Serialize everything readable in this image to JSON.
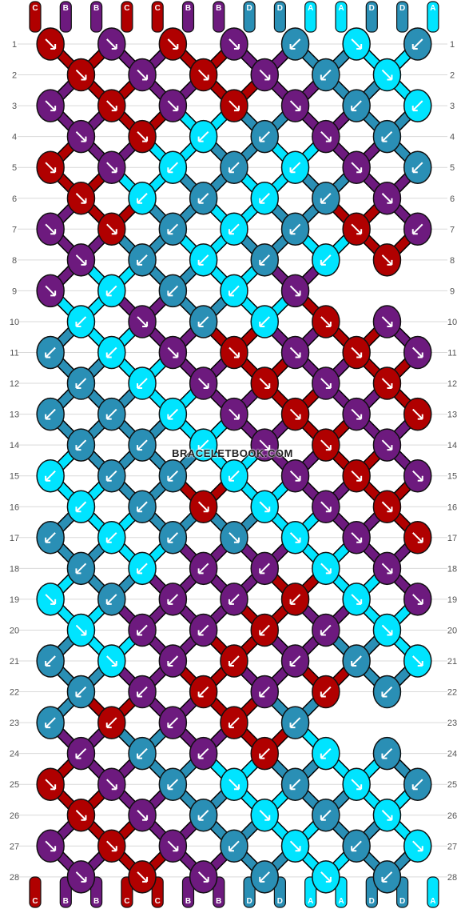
{
  "colors": {
    "A": "#00e4ff",
    "B": "#6d1a7e",
    "C": "#b00000",
    "D": "#2a8fb5"
  },
  "strands_top": [
    "C",
    "B",
    "B",
    "C",
    "C",
    "B",
    "B",
    "D",
    "D",
    "A",
    "A",
    "D",
    "D",
    "A"
  ],
  "strands_bottom": [
    "C",
    "B",
    "B",
    "C",
    "C",
    "B",
    "B",
    "D",
    "D",
    "A",
    "A",
    "D",
    "D",
    "A"
  ],
  "rows": [
    {
      "num": "1",
      "knots": [
        [
          "C",
          "r"
        ],
        [
          "B",
          "r"
        ],
        [
          "C",
          "r"
        ],
        [
          "B",
          "r"
        ],
        [
          "D",
          "l"
        ],
        [
          "A",
          "r"
        ],
        [
          "D",
          "l"
        ]
      ]
    },
    {
      "num": "2",
      "knots": [
        [
          "C",
          "r"
        ],
        [
          "B",
          "r"
        ],
        [
          "C",
          "r"
        ],
        [
          "B",
          "r"
        ],
        [
          "D",
          "l"
        ],
        [
          "A",
          "r"
        ]
      ]
    },
    {
      "num": "3",
      "knots": [
        [
          "B",
          "r"
        ],
        [
          "C",
          "r"
        ],
        [
          "B",
          "r"
        ],
        [
          "C",
          "r"
        ],
        [
          "B",
          "r"
        ],
        [
          "D",
          "l"
        ],
        [
          "A",
          "l"
        ]
      ]
    },
    {
      "num": "4",
      "knots": [
        [
          "B",
          "r"
        ],
        [
          "C",
          "r"
        ],
        [
          "A",
          "l"
        ],
        [
          "D",
          "l"
        ],
        [
          "B",
          "r"
        ],
        [
          "D",
          "l"
        ]
      ]
    },
    {
      "num": "5",
      "knots": [
        [
          "C",
          "r"
        ],
        [
          "B",
          "r"
        ],
        [
          "A",
          "l"
        ],
        [
          "D",
          "l"
        ],
        [
          "A",
          "l"
        ],
        [
          "B",
          "r"
        ],
        [
          "D",
          "l"
        ]
      ]
    },
    {
      "num": "6",
      "knots": [
        [
          "C",
          "r"
        ],
        [
          "A",
          "l"
        ],
        [
          "D",
          "l"
        ],
        [
          "A",
          "l"
        ],
        [
          "D",
          "l"
        ],
        [
          "B",
          "r"
        ]
      ]
    },
    {
      "num": "7",
      "knots": [
        [
          "B",
          "r"
        ],
        [
          "C",
          "r"
        ],
        [
          "D",
          "l"
        ],
        [
          "A",
          "l"
        ],
        [
          "D",
          "l"
        ],
        [
          "C",
          "r"
        ],
        [
          "B",
          "l"
        ]
      ]
    },
    {
      "num": "8",
      "knots": [
        [
          "B",
          "r"
        ],
        [
          "D",
          "l"
        ],
        [
          "A",
          "l"
        ],
        [
          "D",
          "l"
        ],
        [
          "A",
          "l"
        ],
        [
          "C",
          "r"
        ]
      ]
    },
    {
      "num": "9",
      "knots": [
        [
          "B",
          "r"
        ],
        [
          "A",
          "l"
        ],
        [
          "D",
          "l"
        ],
        [
          "A",
          "l"
        ],
        [
          "B",
          "r"
        ]
      ]
    },
    {
      "num": "10",
      "knots": [
        [
          "A",
          "l"
        ],
        [
          "B",
          "r"
        ],
        [
          "D",
          "l"
        ],
        [
          "A",
          "l"
        ],
        [
          "C",
          "r"
        ],
        [
          "B",
          "r"
        ]
      ]
    },
    {
      "num": "11",
      "knots": [
        [
          "D",
          "l"
        ],
        [
          "A",
          "l"
        ],
        [
          "B",
          "r"
        ],
        [
          "C",
          "r"
        ],
        [
          "B",
          "r"
        ],
        [
          "C",
          "r"
        ],
        [
          "B",
          "r"
        ]
      ]
    },
    {
      "num": "12",
      "knots": [
        [
          "D",
          "l"
        ],
        [
          "A",
          "l"
        ],
        [
          "B",
          "r"
        ],
        [
          "C",
          "r"
        ],
        [
          "B",
          "r"
        ],
        [
          "C",
          "r"
        ]
      ]
    },
    {
      "num": "13",
      "knots": [
        [
          "D",
          "l"
        ],
        [
          "D",
          "l"
        ],
        [
          "A",
          "l"
        ],
        [
          "B",
          "r"
        ],
        [
          "C",
          "r"
        ],
        [
          "B",
          "r"
        ],
        [
          "C",
          "r"
        ]
      ]
    },
    {
      "num": "14",
      "knots": [
        [
          "D",
          "l"
        ],
        [
          "D",
          "l"
        ],
        [
          "A",
          "l"
        ],
        [
          "B",
          "r"
        ],
        [
          "C",
          "r"
        ],
        [
          "B",
          "r"
        ]
      ]
    },
    {
      "num": "15",
      "knots": [
        [
          "A",
          "l"
        ],
        [
          "D",
          "l"
        ],
        [
          "D",
          "l"
        ],
        [
          "A",
          "l"
        ],
        [
          "B",
          "r"
        ],
        [
          "C",
          "r"
        ],
        [
          "B",
          "r"
        ]
      ]
    },
    {
      "num": "16",
      "knots": [
        [
          "A",
          "l"
        ],
        [
          "D",
          "l"
        ],
        [
          "C",
          "r"
        ],
        [
          "A",
          "r"
        ],
        [
          "B",
          "r"
        ],
        [
          "C",
          "r"
        ]
      ]
    },
    {
      "num": "17",
      "knots": [
        [
          "D",
          "l"
        ],
        [
          "A",
          "l"
        ],
        [
          "D",
          "l"
        ],
        [
          "D",
          "r"
        ],
        [
          "A",
          "r"
        ],
        [
          "B",
          "r"
        ],
        [
          "C",
          "r"
        ]
      ]
    },
    {
      "num": "18",
      "knots": [
        [
          "D",
          "l"
        ],
        [
          "A",
          "l"
        ],
        [
          "B",
          "l"
        ],
        [
          "B",
          "l"
        ],
        [
          "A",
          "r"
        ],
        [
          "B",
          "r"
        ]
      ]
    },
    {
      "num": "19",
      "knots": [
        [
          "A",
          "r"
        ],
        [
          "D",
          "l"
        ],
        [
          "B",
          "l"
        ],
        [
          "B",
          "l"
        ],
        [
          "C",
          "l"
        ],
        [
          "A",
          "r"
        ],
        [
          "B",
          "r"
        ]
      ]
    },
    {
      "num": "20",
      "knots": [
        [
          "A",
          "r"
        ],
        [
          "B",
          "l"
        ],
        [
          "B",
          "l"
        ],
        [
          "C",
          "l"
        ],
        [
          "B",
          "l"
        ],
        [
          "A",
          "r"
        ]
      ]
    },
    {
      "num": "21",
      "knots": [
        [
          "D",
          "l"
        ],
        [
          "A",
          "r"
        ],
        [
          "B",
          "l"
        ],
        [
          "C",
          "l"
        ],
        [
          "B",
          "l"
        ],
        [
          "D",
          "l"
        ],
        [
          "A",
          "r"
        ]
      ]
    },
    {
      "num": "22",
      "knots": [
        [
          "D",
          "l"
        ],
        [
          "B",
          "l"
        ],
        [
          "C",
          "l"
        ],
        [
          "B",
          "l"
        ],
        [
          "C",
          "l"
        ],
        [
          "D",
          "l"
        ]
      ]
    },
    {
      "num": "23",
      "knots": [
        [
          "D",
          "l"
        ],
        [
          "C",
          "l"
        ],
        [
          "B",
          "l"
        ],
        [
          "C",
          "l"
        ],
        [
          "D",
          "l"
        ]
      ]
    },
    {
      "num": "24",
      "knots": [
        [
          "B",
          "l"
        ],
        [
          "D",
          "l"
        ],
        [
          "B",
          "l"
        ],
        [
          "C",
          "l"
        ],
        [
          "A",
          "l"
        ],
        [
          "D",
          "l"
        ]
      ]
    },
    {
      "num": "25",
      "knots": [
        [
          "C",
          "r"
        ],
        [
          "B",
          "r"
        ],
        [
          "D",
          "l"
        ],
        [
          "A",
          "r"
        ],
        [
          "D",
          "l"
        ],
        [
          "A",
          "r"
        ],
        [
          "D",
          "l"
        ]
      ]
    },
    {
      "num": "26",
      "knots": [
        [
          "C",
          "r"
        ],
        [
          "B",
          "r"
        ],
        [
          "D",
          "l"
        ],
        [
          "A",
          "r"
        ],
        [
          "D",
          "l"
        ],
        [
          "A",
          "r"
        ]
      ]
    },
    {
      "num": "27",
      "knots": [
        [
          "B",
          "r"
        ],
        [
          "C",
          "r"
        ],
        [
          "B",
          "r"
        ],
        [
          "D",
          "l"
        ],
        [
          "A",
          "r"
        ],
        [
          "D",
          "l"
        ],
        [
          "A",
          "r"
        ]
      ]
    },
    {
      "num": "28",
      "knots": [
        [
          "B",
          "r"
        ],
        [
          "C",
          "r"
        ],
        [
          "B",
          "r"
        ],
        [
          "D",
          "l"
        ],
        [
          "A",
          "r"
        ],
        [
          "D",
          "l"
        ]
      ]
    }
  ],
  "watermark": "BRACELETBOOK.COM"
}
